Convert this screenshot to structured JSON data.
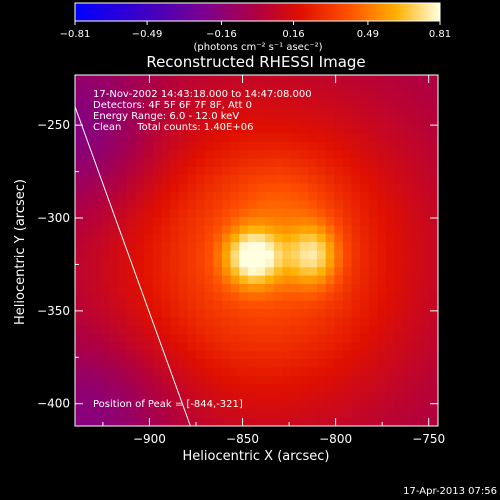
{
  "chart_data": {
    "type": "heatmap",
    "title": "Reconstructed RHESSI Image",
    "xlabel": "Heliocentric X (arcsec)",
    "ylabel": "Heliocentric Y (arcsec)",
    "xlim": [
      -940,
      -745
    ],
    "ylim": [
      -412,
      -223
    ],
    "x_ticks": [
      -900,
      -850,
      -800,
      -750
    ],
    "y_ticks": [
      -250,
      -300,
      -350,
      -400
    ],
    "x_tick_labels": [
      "−900",
      "−850",
      "−800",
      "−750"
    ],
    "y_tick_labels": [
      "−250",
      "−300",
      "−350",
      "−400"
    ],
    "colorbar": {
      "range": [
        -0.81,
        0.81
      ],
      "ticks": [
        -0.81,
        -0.49,
        -0.16,
        0.16,
        0.49,
        0.81
      ],
      "tick_labels": [
        "−0.81",
        "−0.49",
        "−0.16",
        "0.16",
        "0.49",
        "0.81"
      ],
      "unit_label": "(photons cm⁻² s⁻¹ asec⁻²)"
    },
    "info_lines": [
      "17-Nov-2002 14:43:18.000 to 14:47:08.000",
      "Detectors: 4F 5F 6F 7F 8F, Att 0",
      "Energy Range: 6.0 - 12.0 keV",
      "Clean     Total counts: 1.40E+06"
    ],
    "peak_label": "Position of Peak = [-844,-321]",
    "peak_position": [
      -844,
      -321
    ],
    "secondary_peak_position": [
      -812,
      -320
    ],
    "limb_line": [
      [
        -940,
        -240
      ],
      [
        -878,
        -412
      ]
    ],
    "timestamp": "17-Apr-2013 07:56"
  }
}
